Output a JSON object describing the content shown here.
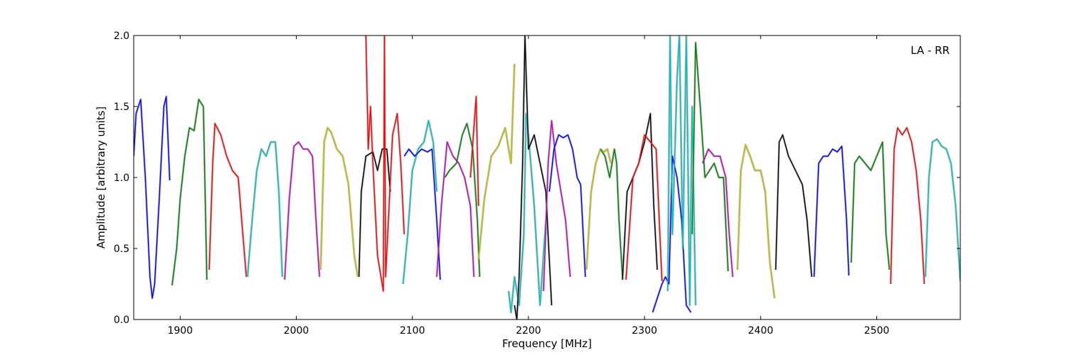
{
  "chart_data": {
    "type": "line",
    "title": "",
    "annotation": "LA - RR",
    "xlabel": "Frequency [MHz]",
    "ylabel": "Amplitude [arbitrary units]",
    "xlim": [
      1860,
      2572
    ],
    "ylim": [
      0,
      2.0
    ],
    "xticks": [
      1900,
      2000,
      2100,
      2200,
      2300,
      2400,
      2500
    ],
    "xtick_labels": [
      "1900",
      "2000",
      "2100",
      "2200",
      "2300",
      "2400",
      "2500"
    ],
    "yticks": [
      0.0,
      0.5,
      1.0,
      1.5,
      2.0
    ],
    "ytick_labels": [
      "0.0",
      "0.5",
      "1.0",
      "1.5",
      "2.0"
    ],
    "grid": false,
    "legend": "none",
    "colors": {
      "blue": "#0000ff",
      "green": "#007f00",
      "red": "#ff0000",
      "cyan": "#00bfbf",
      "magenta": "#bf00bf",
      "olive": "#bfbf00",
      "black": "#000000",
      "gray": "#bfbfbf"
    },
    "series": [
      {
        "color": "blue",
        "x": [
          1860,
          1862,
          1866,
          1870,
          1874,
          1876,
          1878,
          1882,
          1886,
          1888,
          1891
        ],
        "y": [
          1.15,
          1.45,
          1.55,
          1.0,
          0.3,
          0.15,
          0.25,
          0.85,
          1.5,
          1.57,
          0.98
        ]
      },
      {
        "color": "green",
        "x": [
          1893,
          1897,
          1900,
          1904,
          1908,
          1912,
          1916,
          1920,
          1923
        ],
        "y": [
          0.24,
          0.5,
          0.85,
          1.15,
          1.35,
          1.33,
          1.55,
          1.5,
          0.28
        ]
      },
      {
        "color": "red",
        "x": [
          1925,
          1928,
          1930,
          1935,
          1940,
          1945,
          1950,
          1954,
          1957
        ],
        "y": [
          0.35,
          1.1,
          1.38,
          1.3,
          1.15,
          1.05,
          1.0,
          0.6,
          0.3
        ]
      },
      {
        "color": "cyan",
        "x": [
          1958,
          1962,
          1966,
          1970,
          1974,
          1978,
          1982,
          1985,
          1988
        ],
        "y": [
          0.3,
          0.7,
          1.05,
          1.2,
          1.15,
          1.25,
          1.25,
          0.9,
          0.3
        ]
      },
      {
        "color": "magenta",
        "x": [
          1990,
          1994,
          1998,
          2002,
          2006,
          2010,
          2014,
          2017,
          2020
        ],
        "y": [
          0.28,
          0.85,
          1.22,
          1.25,
          1.2,
          1.2,
          1.15,
          0.7,
          0.3
        ]
      },
      {
        "color": "olive",
        "x": [
          2021,
          2024,
          2027,
          2030,
          2035,
          2040,
          2045,
          2050,
          2053
        ],
        "y": [
          0.35,
          1.25,
          1.35,
          1.32,
          1.2,
          1.15,
          0.95,
          0.45,
          0.3
        ]
      },
      {
        "color": "black",
        "x": [
          2054,
          2056,
          2060,
          2066,
          2070,
          2074,
          2078,
          2081
        ],
        "y": [
          0.3,
          0.9,
          1.15,
          1.18,
          1.05,
          1.2,
          1.2,
          0.9
        ]
      },
      {
        "color": "red",
        "x": [
          2060,
          2062,
          2064,
          2066,
          2070,
          2075,
          2076,
          2077,
          2080,
          2083,
          2087,
          2090,
          2093
        ],
        "y": [
          2.0,
          1.2,
          1.5,
          1.1,
          0.45,
          0.2,
          2.0,
          0.3,
          0.8,
          1.3,
          1.45,
          1.1,
          0.6
        ]
      },
      {
        "color": "cyan",
        "x": [
          2092,
          2096,
          2100,
          2105,
          2110,
          2114,
          2118,
          2121
        ],
        "y": [
          0.25,
          0.6,
          1.05,
          1.2,
          1.25,
          1.4,
          1.25,
          0.9
        ]
      },
      {
        "color": "blue",
        "x": [
          2093,
          2097,
          2102,
          2108,
          2113,
          2117,
          2121,
          2124
        ],
        "y": [
          1.15,
          1.2,
          1.15,
          1.2,
          1.18,
          1.2,
          0.7,
          0.28
        ]
      },
      {
        "color": "magenta",
        "x": [
          2121,
          2125,
          2130,
          2135,
          2140,
          2145,
          2150,
          2153
        ],
        "y": [
          0.3,
          0.8,
          1.25,
          1.15,
          1.1,
          1.0,
          0.8,
          0.3
        ]
      },
      {
        "color": "green",
        "x": [
          2128,
          2132,
          2138,
          2143,
          2147,
          2152,
          2156,
          2158
        ],
        "y": [
          1.0,
          1.05,
          1.1,
          1.3,
          1.38,
          1.2,
          0.7,
          0.3
        ]
      },
      {
        "color": "red",
        "x": [
          2150,
          2153,
          2155,
          2157
        ],
        "y": [
          1.0,
          1.35,
          1.57,
          0.8
        ]
      },
      {
        "color": "olive",
        "x": [
          2157,
          2162,
          2168,
          2174,
          2180,
          2185,
          2188
        ],
        "y": [
          0.42,
          0.85,
          1.15,
          1.22,
          1.35,
          1.1,
          1.8
        ]
      },
      {
        "color": "cyan",
        "x": [
          2183,
          2185,
          2188,
          2192,
          2196,
          2198,
          2200,
          2205,
          2210,
          2215
        ],
        "y": [
          0.2,
          0.05,
          0.3,
          0.1,
          0.6,
          1.45,
          1.3,
          0.8,
          0.1,
          0.7
        ]
      },
      {
        "color": "black",
        "x": [
          2188,
          2190,
          2192,
          2195,
          2197,
          2200,
          2205,
          2210,
          2215,
          2220
        ],
        "y": [
          0.1,
          0.0,
          0.3,
          1.1,
          2.0,
          1.2,
          1.3,
          1.1,
          0.9,
          0.1
        ]
      },
      {
        "color": "magenta",
        "x": [
          2213,
          2217,
          2220,
          2224,
          2228,
          2232,
          2236
        ],
        "y": [
          0.2,
          1.1,
          1.4,
          1.1,
          0.9,
          0.7,
          0.3
        ]
      },
      {
        "color": "blue",
        "x": [
          2218,
          2222,
          2226,
          2230,
          2234,
          2238,
          2242,
          2245,
          2249
        ],
        "y": [
          0.9,
          1.2,
          1.3,
          1.28,
          1.3,
          1.2,
          1.0,
          0.95,
          0.3
        ]
      },
      {
        "color": "olive",
        "x": [
          2250,
          2254,
          2258,
          2262,
          2265,
          2268,
          2271
        ],
        "y": [
          0.35,
          0.9,
          1.1,
          1.2,
          1.18,
          1.2,
          1.1
        ]
      },
      {
        "color": "green",
        "x": [
          2262,
          2266,
          2270,
          2274,
          2276,
          2278,
          2281
        ],
        "y": [
          1.2,
          1.15,
          1.0,
          1.2,
          1.1,
          0.7,
          0.3
        ]
      },
      {
        "color": "black",
        "x": [
          2281,
          2285,
          2290,
          2295,
          2300,
          2305,
          2308,
          2311
        ],
        "y": [
          0.28,
          0.9,
          1.0,
          1.1,
          1.25,
          1.45,
          0.8,
          0.35
        ]
      },
      {
        "color": "red",
        "x": [
          2284,
          2290,
          2295,
          2300,
          2305,
          2310,
          2315
        ],
        "y": [
          0.28,
          1.0,
          1.1,
          1.3,
          1.25,
          1.2,
          0.27
        ]
      },
      {
        "color": "blue",
        "x": [
          2307,
          2311,
          2315,
          2318,
          2321,
          2324,
          2328,
          2332,
          2336,
          2340
        ],
        "y": [
          0.05,
          0.15,
          0.25,
          0.3,
          0.25,
          1.15,
          1.0,
          0.7,
          0.1,
          0.05
        ]
      },
      {
        "color": "cyan",
        "x": [
          2320,
          2322,
          2324,
          2328,
          2330,
          2333,
          2336,
          2339,
          2341,
          2344
        ],
        "y": [
          0.2,
          2.0,
          0.6,
          1.7,
          2.0,
          0.5,
          2.0,
          0.1,
          1.5,
          0.1
        ]
      },
      {
        "color": "green",
        "x": [
          2341,
          2344,
          2348,
          2352,
          2356,
          2360,
          2364,
          2368,
          2372
        ],
        "y": [
          0.6,
          1.95,
          1.5,
          1.0,
          1.05,
          1.1,
          1.0,
          1.0,
          0.34
        ]
      },
      {
        "color": "magenta",
        "x": [
          2350,
          2355,
          2360,
          2365,
          2370,
          2373,
          2376
        ],
        "y": [
          1.1,
          1.2,
          1.15,
          1.15,
          1.0,
          0.6,
          0.3
        ]
      },
      {
        "color": "olive",
        "x": [
          2380,
          2383,
          2387,
          2391,
          2395,
          2400,
          2404,
          2408,
          2412
        ],
        "y": [
          0.35,
          1.05,
          1.23,
          1.15,
          1.05,
          1.05,
          0.9,
          0.4,
          0.15
        ]
      },
      {
        "color": "black",
        "x": [
          2413,
          2416,
          2419,
          2424,
          2430,
          2436,
          2440,
          2444
        ],
        "y": [
          0.35,
          1.25,
          1.3,
          1.15,
          1.05,
          0.95,
          0.7,
          0.3
        ]
      },
      {
        "color": "blue",
        "x": [
          2446,
          2450,
          2454,
          2458,
          2462,
          2466,
          2470,
          2474,
          2476
        ],
        "y": [
          0.3,
          1.1,
          1.15,
          1.15,
          1.2,
          1.18,
          1.22,
          0.7,
          0.31
        ]
      },
      {
        "color": "green",
        "x": [
          2478,
          2481,
          2485,
          2490,
          2495,
          2500,
          2505,
          2508,
          2511
        ],
        "y": [
          0.4,
          1.1,
          1.15,
          1.1,
          1.05,
          1.15,
          1.25,
          0.6,
          0.35
        ]
      },
      {
        "color": "red",
        "x": [
          2512,
          2515,
          2518,
          2522,
          2526,
          2530,
          2534,
          2538,
          2541
        ],
        "y": [
          0.25,
          1.2,
          1.35,
          1.3,
          1.35,
          1.25,
          1.05,
          0.7,
          0.25
        ]
      },
      {
        "color": "cyan",
        "x": [
          2542,
          2545,
          2548,
          2552,
          2556,
          2560,
          2564,
          2568,
          2572
        ],
        "y": [
          0.3,
          1.0,
          1.25,
          1.27,
          1.22,
          1.2,
          1.1,
          0.8,
          0.27
        ]
      }
    ]
  }
}
